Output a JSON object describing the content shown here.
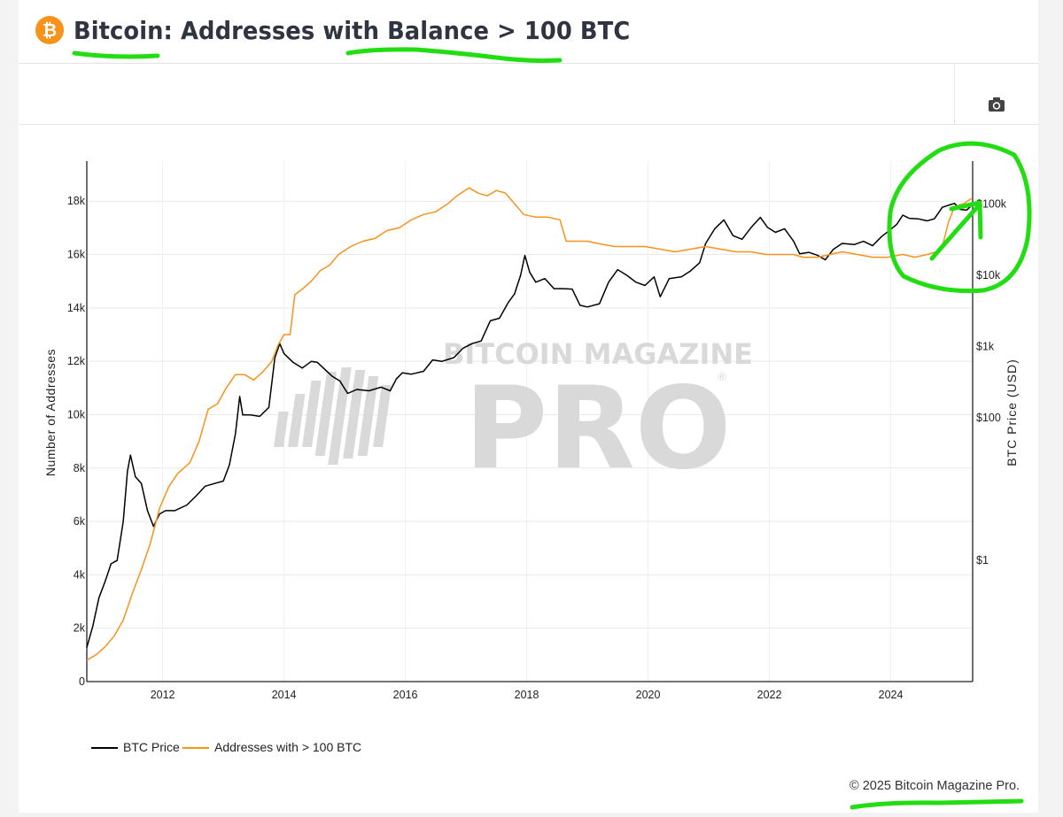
{
  "header": {
    "logo_glyph": "₿",
    "title": "Bitcoin: Addresses with Balance > 100 BTC"
  },
  "toolbar": {
    "icon": "camera-icon"
  },
  "footer": {
    "copyright": "© 2025 Bitcoin Magazine Pro."
  },
  "watermark": {
    "line1": "BITCOIN MAGAZINE",
    "line2": "PRO",
    "mark": "®"
  },
  "colors": {
    "btc_price": "#000000",
    "addresses": "#f7931a",
    "annotation": "#22dd11",
    "watermark": "#d9d9d9"
  },
  "chart_data": {
    "type": "line",
    "xlabel": "",
    "ylabel_left": "Number of Addresses",
    "ylabel_right": "BTC Price (USD)",
    "x_ticks": [
      "2012",
      "2014",
      "2016",
      "2018",
      "2020",
      "2022",
      "2024"
    ],
    "x_range": [
      2010.75,
      2025.35
    ],
    "y_left_ticks": [
      "0",
      "2k",
      "4k",
      "6k",
      "8k",
      "10k",
      "12k",
      "14k",
      "16k",
      "18k"
    ],
    "y_left_range": [
      0,
      19500
    ],
    "y_right_scale": "log",
    "y_right_ticks": [
      "$1",
      "$100",
      "$1k",
      "$10k",
      "$100k"
    ],
    "y_right_range": [
      0.02,
      400000
    ],
    "grid": true,
    "legend_position": "bottom-left",
    "series": [
      {
        "name": "BTC Price",
        "axis": "right",
        "points": [
          [
            2010.75,
            0.06
          ],
          [
            2010.85,
            0.12
          ],
          [
            2010.95,
            0.3
          ],
          [
            2011.05,
            0.5
          ],
          [
            2011.15,
            0.9
          ],
          [
            2011.25,
            1.0
          ],
          [
            2011.35,
            3.5
          ],
          [
            2011.42,
            18
          ],
          [
            2011.47,
            30
          ],
          [
            2011.55,
            15
          ],
          [
            2011.65,
            12
          ],
          [
            2011.75,
            5
          ],
          [
            2011.85,
            3
          ],
          [
            2011.95,
            4.5
          ],
          [
            2012.05,
            5
          ],
          [
            2012.2,
            5
          ],
          [
            2012.4,
            6
          ],
          [
            2012.55,
            8
          ],
          [
            2012.7,
            11
          ],
          [
            2012.85,
            12
          ],
          [
            2013.0,
            13
          ],
          [
            2013.1,
            22
          ],
          [
            2013.2,
            60
          ],
          [
            2013.27,
            200
          ],
          [
            2013.32,
            110
          ],
          [
            2013.45,
            110
          ],
          [
            2013.6,
            105
          ],
          [
            2013.75,
            140
          ],
          [
            2013.85,
            700
          ],
          [
            2013.93,
            1100
          ],
          [
            2014.0,
            800
          ],
          [
            2014.15,
            600
          ],
          [
            2014.3,
            500
          ],
          [
            2014.45,
            620
          ],
          [
            2014.55,
            600
          ],
          [
            2014.65,
            500
          ],
          [
            2014.8,
            380
          ],
          [
            2014.92,
            330
          ],
          [
            2015.05,
            220
          ],
          [
            2015.2,
            250
          ],
          [
            2015.4,
            240
          ],
          [
            2015.6,
            270
          ],
          [
            2015.75,
            240
          ],
          [
            2015.85,
            350
          ],
          [
            2015.95,
            430
          ],
          [
            2016.1,
            410
          ],
          [
            2016.3,
            450
          ],
          [
            2016.45,
            650
          ],
          [
            2016.6,
            620
          ],
          [
            2016.8,
            700
          ],
          [
            2016.95,
            950
          ],
          [
            2017.1,
            1100
          ],
          [
            2017.25,
            1200
          ],
          [
            2017.4,
            2300
          ],
          [
            2017.55,
            2500
          ],
          [
            2017.7,
            4200
          ],
          [
            2017.8,
            5500
          ],
          [
            2017.9,
            10000
          ],
          [
            2017.97,
            19000
          ],
          [
            2018.05,
            11000
          ],
          [
            2018.15,
            8000
          ],
          [
            2018.3,
            9000
          ],
          [
            2018.45,
            6500
          ],
          [
            2018.6,
            6500
          ],
          [
            2018.75,
            6400
          ],
          [
            2018.88,
            3800
          ],
          [
            2019.0,
            3600
          ],
          [
            2019.2,
            4000
          ],
          [
            2019.35,
            8000
          ],
          [
            2019.5,
            12000
          ],
          [
            2019.65,
            10000
          ],
          [
            2019.8,
            8000
          ],
          [
            2019.95,
            7200
          ],
          [
            2020.1,
            9500
          ],
          [
            2020.2,
            5000
          ],
          [
            2020.35,
            9000
          ],
          [
            2020.55,
            9500
          ],
          [
            2020.7,
            11500
          ],
          [
            2020.85,
            15000
          ],
          [
            2020.95,
            28000
          ],
          [
            2021.1,
            45000
          ],
          [
            2021.25,
            60000
          ],
          [
            2021.4,
            36000
          ],
          [
            2021.55,
            32000
          ],
          [
            2021.7,
            47000
          ],
          [
            2021.85,
            65000
          ],
          [
            2021.97,
            47000
          ],
          [
            2022.1,
            40000
          ],
          [
            2022.25,
            45000
          ],
          [
            2022.4,
            30000
          ],
          [
            2022.5,
            20000
          ],
          [
            2022.65,
            21000
          ],
          [
            2022.8,
            19000
          ],
          [
            2022.92,
            16500
          ],
          [
            2023.05,
            23000
          ],
          [
            2023.2,
            28000
          ],
          [
            2023.4,
            27000
          ],
          [
            2023.55,
            30000
          ],
          [
            2023.7,
            26000
          ],
          [
            2023.85,
            35000
          ],
          [
            2023.97,
            42000
          ],
          [
            2024.1,
            52000
          ],
          [
            2024.2,
            70000
          ],
          [
            2024.3,
            63000
          ],
          [
            2024.45,
            62000
          ],
          [
            2024.6,
            58000
          ],
          [
            2024.72,
            62000
          ],
          [
            2024.85,
            90000
          ],
          [
            2024.95,
            96000
          ],
          [
            2025.05,
            102000
          ],
          [
            2025.15,
            84000
          ],
          [
            2025.25,
            82000
          ],
          [
            2025.33,
            95000
          ]
        ]
      },
      {
        "name": "Addresses with > 100 BTC",
        "axis": "left",
        "points": [
          [
            2010.75,
            800
          ],
          [
            2010.9,
            1000
          ],
          [
            2011.05,
            1300
          ],
          [
            2011.2,
            1700
          ],
          [
            2011.35,
            2300
          ],
          [
            2011.5,
            3300
          ],
          [
            2011.65,
            4200
          ],
          [
            2011.8,
            5200
          ],
          [
            2011.95,
            6500
          ],
          [
            2012.1,
            7300
          ],
          [
            2012.25,
            7800
          ],
          [
            2012.45,
            8200
          ],
          [
            2012.6,
            9000
          ],
          [
            2012.75,
            10200
          ],
          [
            2012.9,
            10400
          ],
          [
            2013.05,
            11000
          ],
          [
            2013.2,
            11500
          ],
          [
            2013.35,
            11500
          ],
          [
            2013.5,
            11300
          ],
          [
            2013.65,
            11600
          ],
          [
            2013.8,
            12000
          ],
          [
            2013.9,
            12600
          ],
          [
            2014.0,
            13000
          ],
          [
            2014.1,
            13000
          ],
          [
            2014.18,
            14500
          ],
          [
            2014.3,
            14700
          ],
          [
            2014.45,
            15000
          ],
          [
            2014.6,
            15400
          ],
          [
            2014.75,
            15600
          ],
          [
            2014.9,
            16000
          ],
          [
            2015.1,
            16300
          ],
          [
            2015.3,
            16500
          ],
          [
            2015.5,
            16600
          ],
          [
            2015.7,
            16900
          ],
          [
            2015.9,
            17000
          ],
          [
            2016.1,
            17300
          ],
          [
            2016.3,
            17500
          ],
          [
            2016.5,
            17600
          ],
          [
            2016.7,
            17900
          ],
          [
            2016.85,
            18200
          ],
          [
            2017.05,
            18500
          ],
          [
            2017.2,
            18300
          ],
          [
            2017.35,
            18200
          ],
          [
            2017.5,
            18400
          ],
          [
            2017.65,
            18300
          ],
          [
            2017.8,
            17900
          ],
          [
            2017.95,
            17500
          ],
          [
            2018.15,
            17400
          ],
          [
            2018.35,
            17400
          ],
          [
            2018.55,
            17300
          ],
          [
            2018.65,
            16500
          ],
          [
            2018.8,
            16500
          ],
          [
            2019.0,
            16500
          ],
          [
            2019.2,
            16400
          ],
          [
            2019.45,
            16300
          ],
          [
            2019.7,
            16300
          ],
          [
            2019.95,
            16300
          ],
          [
            2020.2,
            16200
          ],
          [
            2020.45,
            16100
          ],
          [
            2020.7,
            16200
          ],
          [
            2020.95,
            16300
          ],
          [
            2021.2,
            16200
          ],
          [
            2021.45,
            16100
          ],
          [
            2021.7,
            16100
          ],
          [
            2021.95,
            16000
          ],
          [
            2022.15,
            16000
          ],
          [
            2022.4,
            16000
          ],
          [
            2022.55,
            15900
          ],
          [
            2022.8,
            15900
          ],
          [
            2023.0,
            16000
          ],
          [
            2023.2,
            16100
          ],
          [
            2023.45,
            16000
          ],
          [
            2023.7,
            15900
          ],
          [
            2023.95,
            15900
          ],
          [
            2024.2,
            16000
          ],
          [
            2024.4,
            15900
          ],
          [
            2024.6,
            16000
          ],
          [
            2024.75,
            16100
          ],
          [
            2024.85,
            16300
          ],
          [
            2024.95,
            17200
          ],
          [
            2025.05,
            17800
          ],
          [
            2025.2,
            17900
          ],
          [
            2025.33,
            18100
          ]
        ]
      }
    ]
  }
}
